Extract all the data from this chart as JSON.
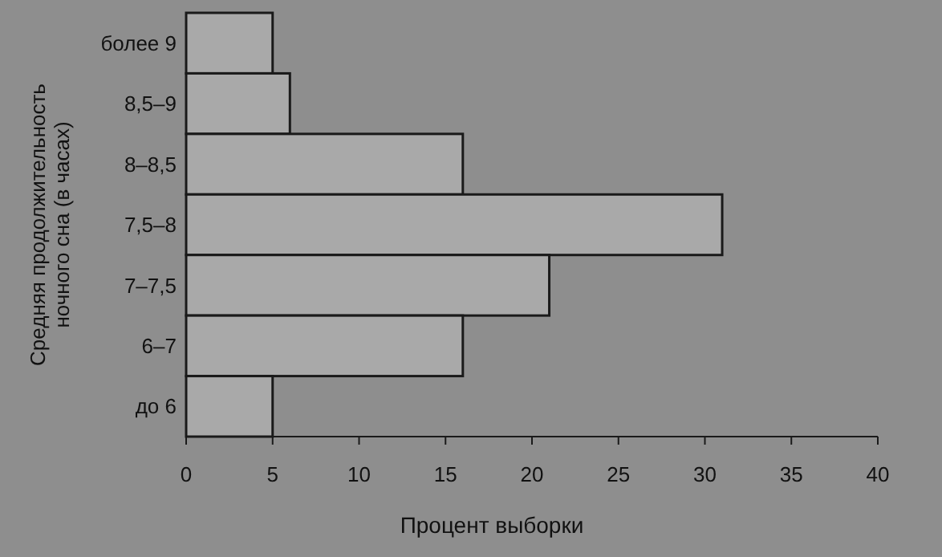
{
  "chart_data": {
    "type": "bar",
    "orientation": "horizontal",
    "xlabel": "Процент выборки",
    "ylabel": "Средняя продолжительность ночного сна (в часах)",
    "categories": [
      "более 9",
      "8,5–9",
      "8–8,5",
      "7,5–8",
      "7–7,5",
      "6–7",
      "до 6"
    ],
    "values": [
      5,
      6,
      16,
      31,
      21,
      16,
      5
    ],
    "color": "#a9a9a9",
    "xlim": [
      0,
      40
    ],
    "xticks": [
      0,
      5,
      10,
      15,
      20,
      25,
      30,
      35,
      40
    ],
    "grid": false
  }
}
